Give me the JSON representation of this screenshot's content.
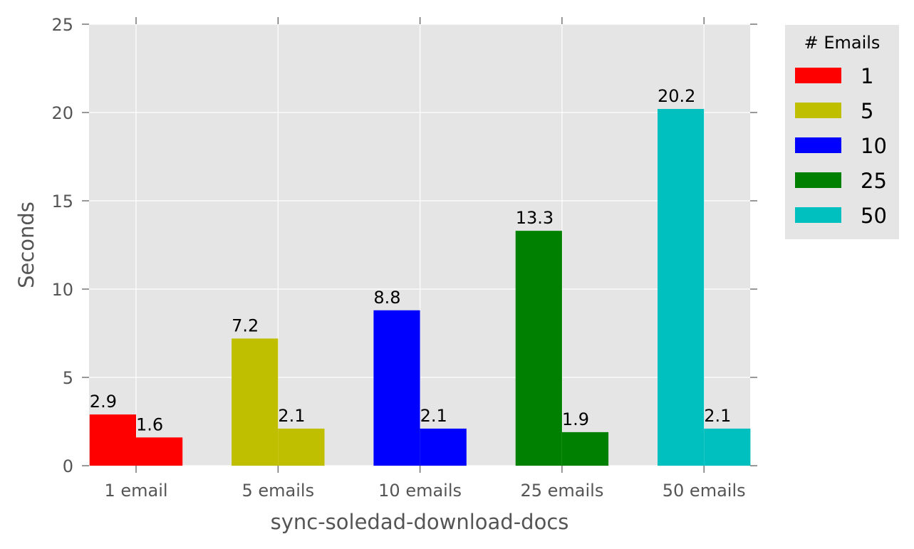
{
  "chart_data": {
    "type": "bar",
    "title": "",
    "xlabel": "sync-soledad-download-docs",
    "ylabel": "Seconds",
    "categories": [
      "1 email",
      "5 emails",
      "10 emails",
      "25 emails",
      "50 emails"
    ],
    "series": [
      {
        "values": [
          2.9,
          7.2,
          8.8,
          13.3,
          20.2
        ]
      },
      {
        "values": [
          1.6,
          2.1,
          2.1,
          1.9,
          2.1
        ]
      }
    ],
    "data_labels": [
      [
        "2.9",
        "7.2",
        "8.8",
        "13.3",
        "20.2"
      ],
      [
        "1.6",
        "2.1",
        "2.1",
        "1.9",
        "2.1"
      ]
    ],
    "ylim": [
      0,
      25
    ],
    "yticks": [
      0,
      5,
      10,
      15,
      20,
      25
    ],
    "ytick_labels": [
      "0",
      "5",
      "10",
      "15",
      "20",
      "25"
    ],
    "grid": true,
    "category_colors": [
      "#ff0000",
      "#bfbf00",
      "#0000ff",
      "#008000",
      "#00bfbf"
    ],
    "legend": {
      "title": "# Emails",
      "placement": "outside-upper-right",
      "entries": [
        {
          "label": "1",
          "color": "#ff0000"
        },
        {
          "label": "5",
          "color": "#bfbf00"
        },
        {
          "label": "10",
          "color": "#0000ff"
        },
        {
          "label": "25",
          "color": "#008000"
        },
        {
          "label": "50",
          "color": "#00bfbf"
        }
      ]
    },
    "background_color": "#e5e5e5",
    "grid_color": "#ffffff"
  }
}
